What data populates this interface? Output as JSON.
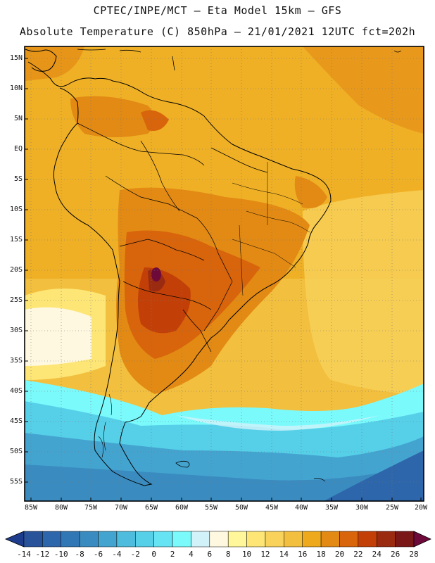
{
  "header": {
    "line1": "CPTEC/INPE/MCT —  Eta Model 15km — GFS",
    "line2": "Absolute Temperature (C) 850hPa — 21/01/2021 12UTC fct=202h"
  },
  "map": {
    "lat_labels": [
      "15N",
      "10N",
      "5N",
      "EQ",
      "5S",
      "10S",
      "15S",
      "20S",
      "25S",
      "30S",
      "35S",
      "40S",
      "45S",
      "50S",
      "55S"
    ],
    "lon_labels": [
      "85W",
      "80W",
      "75W",
      "70W",
      "65W",
      "60W",
      "55W",
      "50W",
      "45W",
      "40W",
      "35W",
      "30W",
      "25W",
      "20W"
    ]
  },
  "colorbar": {
    "labels": [
      "-14",
      "-12",
      "-10",
      "-8",
      "-6",
      "-4",
      "-2",
      "0",
      "2",
      "4",
      "6",
      "8",
      "10",
      "12",
      "14",
      "16",
      "18",
      "20",
      "22",
      "24",
      "26",
      "28"
    ],
    "colors": [
      "#1e3c8c",
      "#28529a",
      "#2d66aa",
      "#3277b5",
      "#3a8cc0",
      "#44a4d0",
      "#4ebcdc",
      "#56d0e8",
      "#66e4f4",
      "#7bfafc",
      "#d2f2fa",
      "#fff8e0",
      "#fff79a",
      "#fde676",
      "#f8d25a",
      "#f2bf3e",
      "#eeaa1c",
      "#e28a14",
      "#d8640c",
      "#c24008",
      "#9a2a10",
      "#7a1818",
      "#6e0a3a"
    ]
  }
}
